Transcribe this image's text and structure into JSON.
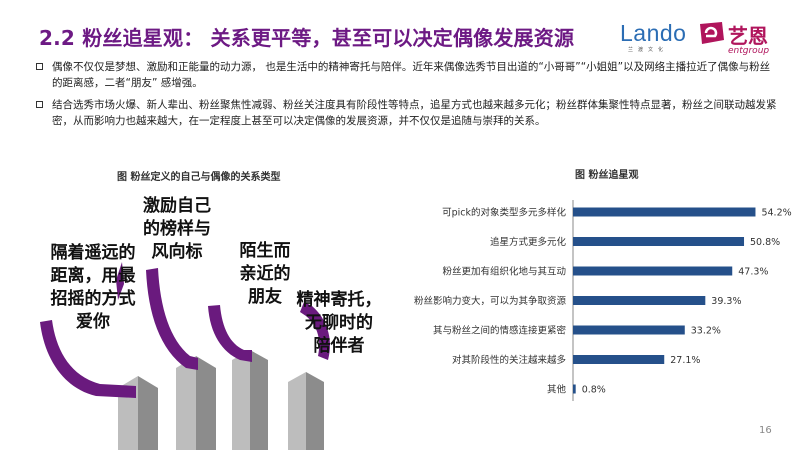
{
  "title": "2.2 粉丝追星观： 关系更平等，甚至可以决定偶像发展资源",
  "logos": {
    "lando": "Lando",
    "lando_sub": "兰渡文化",
    "yien": "艺恩",
    "yien_sub": "entgroup"
  },
  "bullets": [
    "偶像不仅仅是梦想、激励和正能量的动力源， 也是生活中的精神寄托与陪伴。近年来偶像选秀节目出道的“小哥哥”“小姐姐”以及网络主播拉近了偶像与粉丝的距离感，二者“朋友” 感增强。",
    "结合选秀市场火爆、新人辈出、粉丝聚焦性减弱、粉丝关注度具有阶段性等特点，追星方式也越来越多元化；粉丝群体集聚性特点显著，粉丝之间联动越发紧密，从而影响力也越来越大，在一定程度上甚至可以决定偶像的发展资源，并不仅仅是追随与崇拜的关系。"
  ],
  "left_figure": {
    "caption": "图  粉丝定义的自己与偶像的关系类型",
    "relations": [
      [
        "隔着遥远的",
        "距离，用最",
        "招摇的方式",
        "爱你"
      ],
      [
        "激励自己",
        "的榜样与",
        "风向标"
      ],
      [
        "陌生而",
        "亲近的",
        "朋友"
      ],
      [
        "精神寄托，",
        "无聊时的",
        "陪伴者"
      ]
    ]
  },
  "chart_data": {
    "type": "bar",
    "orientation": "horizontal",
    "title": "图  粉丝追星观",
    "categories": [
      "可pick的对象类型多元多样化",
      "追星方式更多元化",
      "粉丝更加有组织化地与其互动",
      "粉丝影响力变大，可以为其争取资源",
      "其与粉丝之间的情感连接更紧密",
      "对其阶段性的关注越来越多",
      "其他"
    ],
    "values": [
      54.2,
      50.8,
      47.3,
      39.3,
      33.2,
      27.1,
      0.8
    ],
    "value_labels": [
      "54.2%",
      "50.8%",
      "47.3%",
      "39.3%",
      "33.2%",
      "27.1%",
      "0.8%"
    ],
    "xlim": [
      0,
      60
    ],
    "bar_color": "#25508a",
    "grid": false,
    "legend": "none"
  },
  "colors": {
    "title": "#6d1a84",
    "purple": "#6a1a7e",
    "gray": "#a3a3a3",
    "bar": "#25508a"
  },
  "page_number": "16"
}
